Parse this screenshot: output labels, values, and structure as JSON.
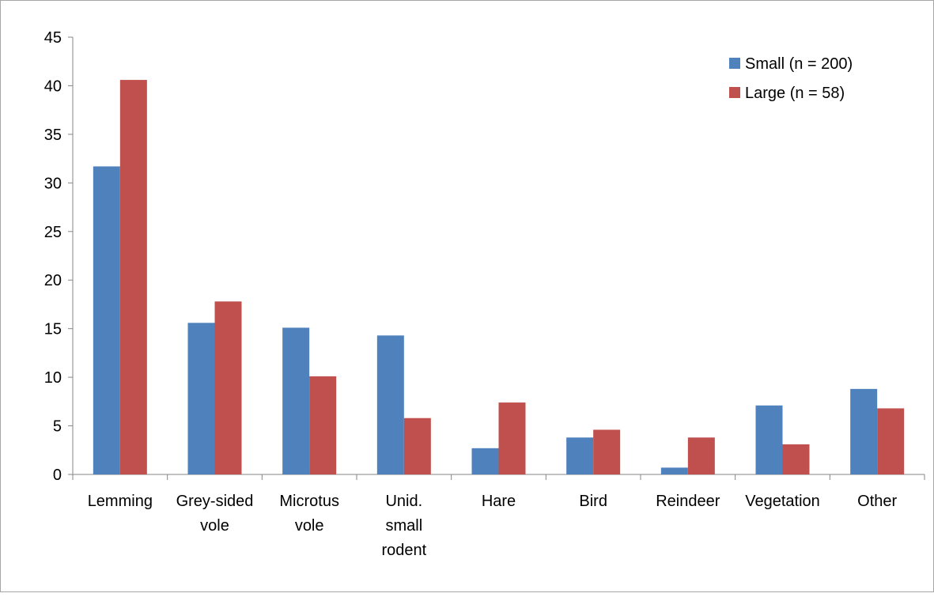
{
  "chart_data": {
    "type": "bar",
    "title": "",
    "xlabel": "",
    "ylabel": "",
    "ylim": [
      0,
      45
    ],
    "yticks": [
      0,
      5,
      10,
      15,
      20,
      25,
      30,
      35,
      40,
      45
    ],
    "ytick_labels": [
      "0",
      "5",
      "10",
      "15",
      "20",
      "25",
      "30",
      "35",
      "40",
      "45"
    ],
    "categories": [
      "Lemming",
      "Grey-sided vole",
      "Microtus vole",
      "Unid. small rodent",
      "Hare",
      "Bird",
      "Reindeer",
      "Vegetation",
      "Other"
    ],
    "category_lines": [
      [
        "Lemming"
      ],
      [
        "Grey-sided",
        "vole"
      ],
      [
        "Microtus",
        "vole"
      ],
      [
        "Unid.",
        "small",
        "rodent"
      ],
      [
        "Hare"
      ],
      [
        "Bird"
      ],
      [
        "Reindeer"
      ],
      [
        "Vegetation"
      ],
      [
        "Other"
      ]
    ],
    "series": [
      {
        "name": "Small (n = 200)",
        "color": "#4f81bd",
        "values": [
          31.7,
          15.6,
          15.1,
          14.3,
          2.7,
          3.8,
          0.7,
          7.1,
          8.8
        ]
      },
      {
        "name": "Large (n = 58)",
        "color": "#c0504d",
        "values": [
          40.6,
          17.8,
          10.1,
          5.8,
          7.4,
          4.6,
          3.8,
          3.1,
          6.8
        ]
      }
    ],
    "grid": false,
    "legend": "top-right"
  }
}
